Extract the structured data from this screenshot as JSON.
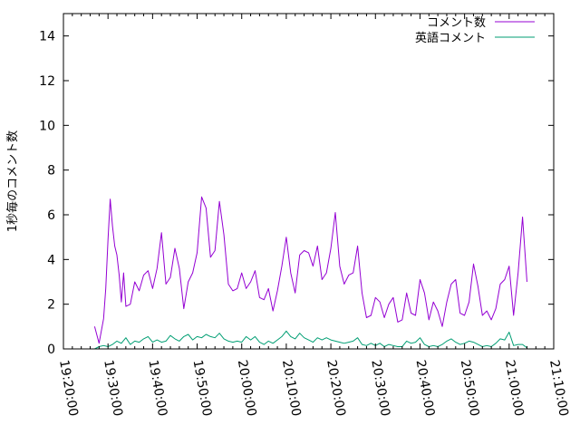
{
  "chart_data": {
    "type": "line",
    "title": "",
    "xlabel": "",
    "ylabel": "1秒毎のコメント数",
    "ylim": [
      0,
      15
    ],
    "yticks": [
      0,
      2,
      4,
      6,
      8,
      10,
      12,
      14
    ],
    "xlim": [
      "19:20:00",
      "21:10:00"
    ],
    "xticks": [
      "19:20:00",
      "19:30:00",
      "19:40:00",
      "19:50:00",
      "20:00:00",
      "20:10:00",
      "20:20:00",
      "20:30:00",
      "20:40:00",
      "20:50:00",
      "21:00:00",
      "21:10:00"
    ],
    "grid": false,
    "legend_position": "top-right",
    "series": [
      {
        "name": "コメント数",
        "color": "#9400d3",
        "points": [
          [
            "19:27:00",
            1.0
          ],
          [
            "19:28:00",
            0.25
          ],
          [
            "19:29:00",
            1.35
          ],
          [
            "19:29:30",
            2.7
          ],
          [
            "19:30:00",
            4.9
          ],
          [
            "19:30:30",
            6.7
          ],
          [
            "19:31:00",
            5.5
          ],
          [
            "19:31:30",
            4.6
          ],
          [
            "19:32:00",
            4.2
          ],
          [
            "19:32:30",
            3.3
          ],
          [
            "19:33:00",
            2.1
          ],
          [
            "19:33:30",
            3.4
          ],
          [
            "19:34:00",
            1.9
          ],
          [
            "19:35:00",
            2.0
          ],
          [
            "19:36:00",
            3.0
          ],
          [
            "19:37:00",
            2.6
          ],
          [
            "19:38:00",
            3.3
          ],
          [
            "19:39:00",
            3.5
          ],
          [
            "19:40:00",
            2.7
          ],
          [
            "19:41:00",
            3.6
          ],
          [
            "19:42:00",
            5.2
          ],
          [
            "19:43:00",
            2.9
          ],
          [
            "19:44:00",
            3.2
          ],
          [
            "19:45:00",
            4.5
          ],
          [
            "19:46:00",
            3.6
          ],
          [
            "19:47:00",
            1.8
          ],
          [
            "19:48:00",
            3.0
          ],
          [
            "19:49:00",
            3.4
          ],
          [
            "19:50:00",
            4.3
          ],
          [
            "19:51:00",
            6.8
          ],
          [
            "19:52:00",
            6.3
          ],
          [
            "19:53:00",
            4.1
          ],
          [
            "19:54:00",
            4.4
          ],
          [
            "19:55:00",
            6.6
          ],
          [
            "19:56:00",
            5.1
          ],
          [
            "19:57:00",
            2.9
          ],
          [
            "19:58:00",
            2.6
          ],
          [
            "19:59:00",
            2.7
          ],
          [
            "20:00:00",
            3.4
          ],
          [
            "20:01:00",
            2.7
          ],
          [
            "20:02:00",
            3.0
          ],
          [
            "20:03:00",
            3.5
          ],
          [
            "20:04:00",
            2.3
          ],
          [
            "20:05:00",
            2.2
          ],
          [
            "20:06:00",
            2.7
          ],
          [
            "20:07:00",
            1.7
          ],
          [
            "20:08:00",
            2.6
          ],
          [
            "20:09:00",
            3.7
          ],
          [
            "20:10:00",
            5.0
          ],
          [
            "20:11:00",
            3.4
          ],
          [
            "20:12:00",
            2.5
          ],
          [
            "20:13:00",
            4.2
          ],
          [
            "20:14:00",
            4.4
          ],
          [
            "20:15:00",
            4.3
          ],
          [
            "20:16:00",
            3.7
          ],
          [
            "20:17:00",
            4.6
          ],
          [
            "20:18:00",
            3.1
          ],
          [
            "20:19:00",
            3.4
          ],
          [
            "20:20:00",
            4.5
          ],
          [
            "20:21:00",
            6.1
          ],
          [
            "20:22:00",
            3.7
          ],
          [
            "20:23:00",
            2.9
          ],
          [
            "20:24:00",
            3.3
          ],
          [
            "20:25:00",
            3.4
          ],
          [
            "20:26:00",
            4.6
          ],
          [
            "20:27:00",
            2.5
          ],
          [
            "20:28:00",
            1.4
          ],
          [
            "20:29:00",
            1.5
          ],
          [
            "20:30:00",
            2.3
          ],
          [
            "20:31:00",
            2.1
          ],
          [
            "20:32:00",
            1.4
          ],
          [
            "20:33:00",
            2.0
          ],
          [
            "20:34:00",
            2.3
          ],
          [
            "20:35:00",
            1.2
          ],
          [
            "20:36:00",
            1.3
          ],
          [
            "20:37:00",
            2.5
          ],
          [
            "20:38:00",
            1.6
          ],
          [
            "20:39:00",
            1.5
          ],
          [
            "20:40:00",
            3.1
          ],
          [
            "20:41:00",
            2.5
          ],
          [
            "20:42:00",
            1.3
          ],
          [
            "20:43:00",
            2.1
          ],
          [
            "20:44:00",
            1.7
          ],
          [
            "20:45:00",
            1.0
          ],
          [
            "20:46:00",
            2.1
          ],
          [
            "20:47:00",
            2.9
          ],
          [
            "20:48:00",
            3.1
          ],
          [
            "20:49:00",
            1.6
          ],
          [
            "20:50:00",
            1.5
          ],
          [
            "20:51:00",
            2.1
          ],
          [
            "20:52:00",
            3.8
          ],
          [
            "20:53:00",
            2.8
          ],
          [
            "20:54:00",
            1.5
          ],
          [
            "20:55:00",
            1.7
          ],
          [
            "20:56:00",
            1.3
          ],
          [
            "20:57:00",
            1.8
          ],
          [
            "20:58:00",
            2.9
          ],
          [
            "20:59:00",
            3.1
          ],
          [
            "21:00:00",
            3.7
          ],
          [
            "21:01:00",
            1.5
          ],
          [
            "21:02:00",
            3.4
          ],
          [
            "21:03:00",
            5.9
          ],
          [
            "21:04:00",
            3.0
          ]
        ]
      },
      {
        "name": "英語コメント",
        "color": "#009e73",
        "points": [
          [
            "19:27:00",
            0.0
          ],
          [
            "19:28:00",
            0.1
          ],
          [
            "19:29:00",
            0.15
          ],
          [
            "19:30:00",
            0.1
          ],
          [
            "19:31:00",
            0.2
          ],
          [
            "19:32:00",
            0.35
          ],
          [
            "19:33:00",
            0.25
          ],
          [
            "19:34:00",
            0.5
          ],
          [
            "19:35:00",
            0.2
          ],
          [
            "19:36:00",
            0.35
          ],
          [
            "19:37:00",
            0.3
          ],
          [
            "19:38:00",
            0.45
          ],
          [
            "19:39:00",
            0.55
          ],
          [
            "19:40:00",
            0.3
          ],
          [
            "19:41:00",
            0.4
          ],
          [
            "19:42:00",
            0.3
          ],
          [
            "19:43:00",
            0.35
          ],
          [
            "19:44:00",
            0.6
          ],
          [
            "19:45:00",
            0.45
          ],
          [
            "19:46:00",
            0.35
          ],
          [
            "19:47:00",
            0.55
          ],
          [
            "19:48:00",
            0.65
          ],
          [
            "19:49:00",
            0.4
          ],
          [
            "19:50:00",
            0.55
          ],
          [
            "19:51:00",
            0.5
          ],
          [
            "19:52:00",
            0.65
          ],
          [
            "19:53:00",
            0.55
          ],
          [
            "19:54:00",
            0.5
          ],
          [
            "19:55:00",
            0.7
          ],
          [
            "19:56:00",
            0.45
          ],
          [
            "19:57:00",
            0.35
          ],
          [
            "19:58:00",
            0.3
          ],
          [
            "19:59:00",
            0.35
          ],
          [
            "20:00:00",
            0.3
          ],
          [
            "20:01:00",
            0.55
          ],
          [
            "20:02:00",
            0.4
          ],
          [
            "20:03:00",
            0.55
          ],
          [
            "20:04:00",
            0.3
          ],
          [
            "20:05:00",
            0.2
          ],
          [
            "20:06:00",
            0.35
          ],
          [
            "20:07:00",
            0.25
          ],
          [
            "20:08:00",
            0.4
          ],
          [
            "20:09:00",
            0.55
          ],
          [
            "20:10:00",
            0.8
          ],
          [
            "20:11:00",
            0.55
          ],
          [
            "20:12:00",
            0.45
          ],
          [
            "20:13:00",
            0.7
          ],
          [
            "20:14:00",
            0.5
          ],
          [
            "20:15:00",
            0.4
          ],
          [
            "20:16:00",
            0.3
          ],
          [
            "20:17:00",
            0.5
          ],
          [
            "20:18:00",
            0.4
          ],
          [
            "20:19:00",
            0.5
          ],
          [
            "20:20:00",
            0.4
          ],
          [
            "20:21:00",
            0.35
          ],
          [
            "20:22:00",
            0.3
          ],
          [
            "20:23:00",
            0.25
          ],
          [
            "20:24:00",
            0.3
          ],
          [
            "20:25:00",
            0.35
          ],
          [
            "20:26:00",
            0.5
          ],
          [
            "20:27:00",
            0.2
          ],
          [
            "20:28:00",
            0.15
          ],
          [
            "20:29:00",
            0.25
          ],
          [
            "20:30:00",
            0.15
          ],
          [
            "20:31:00",
            0.25
          ],
          [
            "20:32:00",
            0.1
          ],
          [
            "20:33:00",
            0.2
          ],
          [
            "20:34:00",
            0.15
          ],
          [
            "20:35:00",
            0.1
          ],
          [
            "20:36:00",
            0.1
          ],
          [
            "20:37:00",
            0.35
          ],
          [
            "20:38:00",
            0.25
          ],
          [
            "20:39:00",
            0.3
          ],
          [
            "20:40:00",
            0.5
          ],
          [
            "20:41:00",
            0.2
          ],
          [
            "20:42:00",
            0.1
          ],
          [
            "20:43:00",
            0.15
          ],
          [
            "20:44:00",
            0.1
          ],
          [
            "20:45:00",
            0.2
          ],
          [
            "20:46:00",
            0.35
          ],
          [
            "20:47:00",
            0.45
          ],
          [
            "20:48:00",
            0.3
          ],
          [
            "20:49:00",
            0.2
          ],
          [
            "20:50:00",
            0.25
          ],
          [
            "20:51:00",
            0.35
          ],
          [
            "20:52:00",
            0.3
          ],
          [
            "20:53:00",
            0.2
          ],
          [
            "20:54:00",
            0.1
          ],
          [
            "20:55:00",
            0.15
          ],
          [
            "20:56:00",
            0.1
          ],
          [
            "20:57:00",
            0.25
          ],
          [
            "20:58:00",
            0.45
          ],
          [
            "20:59:00",
            0.4
          ],
          [
            "21:00:00",
            0.75
          ],
          [
            "21:01:00",
            0.15
          ],
          [
            "21:02:00",
            0.2
          ],
          [
            "21:03:00",
            0.2
          ],
          [
            "21:04:00",
            0.05
          ]
        ]
      }
    ]
  }
}
